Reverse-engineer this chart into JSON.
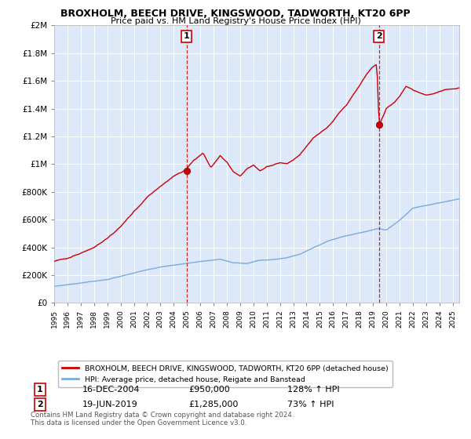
{
  "title": "BROXHOLM, BEECH DRIVE, KINGSWOOD, TADWORTH, KT20 6PP",
  "subtitle": "Price paid vs. HM Land Registry's House Price Index (HPI)",
  "legend_label_red": "BROXHOLM, BEECH DRIVE, KINGSWOOD, TADWORTH, KT20 6PP (detached house)",
  "legend_label_blue": "HPI: Average price, detached house, Reigate and Banstead",
  "sale1_label": "1",
  "sale1_date": "16-DEC-2004",
  "sale1_price": "£950,000",
  "sale1_hpi": "128% ↑ HPI",
  "sale1_year": 2004.96,
  "sale1_value": 950000,
  "sale2_label": "2",
  "sale2_date": "19-JUN-2019",
  "sale2_price": "£1,285,000",
  "sale2_hpi": "73% ↑ HPI",
  "sale2_year": 2019.46,
  "sale2_value": 1285000,
  "footer": "Contains HM Land Registry data © Crown copyright and database right 2024.\nThis data is licensed under the Open Government Licence v3.0.",
  "ylim": [
    0,
    2000000
  ],
  "xlim_start": 1995,
  "xlim_end": 2025.5,
  "background_color": "#ffffff",
  "plot_bg_color": "#dde8f8",
  "red_color": "#cc0000",
  "blue_color": "#7aabdc",
  "grid_color": "#ffffff",
  "dashed_color": "#cc0000"
}
